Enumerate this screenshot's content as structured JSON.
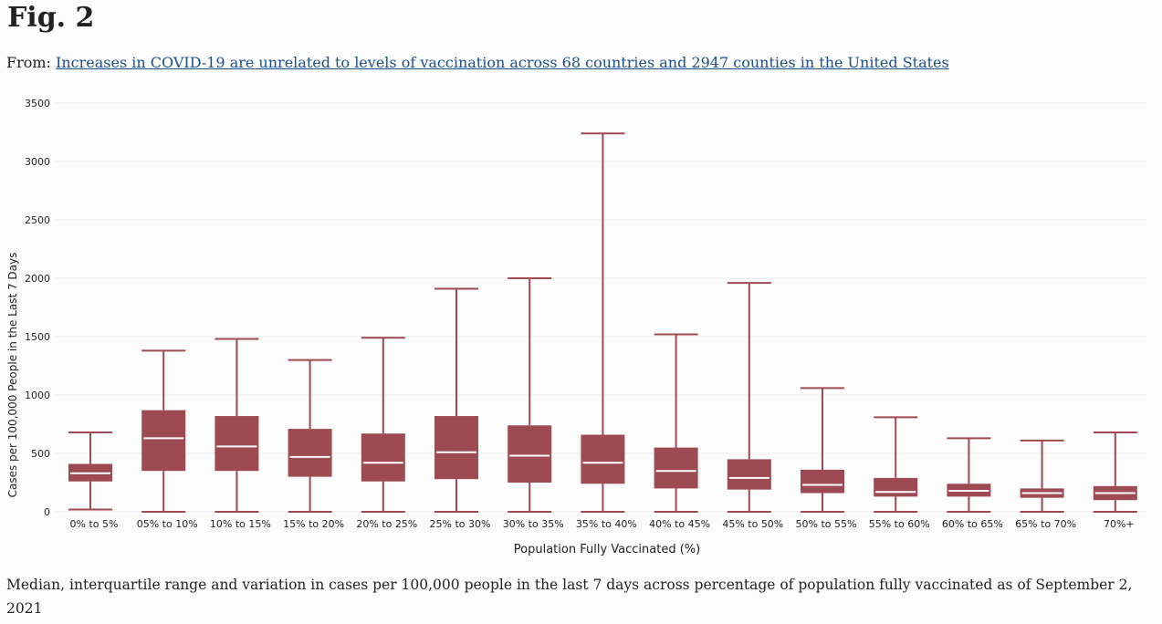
{
  "figure": {
    "title": "Fig. 2",
    "from_prefix": "From: ",
    "source_link": "Increases in COVID-19 are unrelated to levels of vaccination across 68 countries and 2947 counties in the United States",
    "caption": "Median, interquartile range and variation in cases per 100,000 people in the last 7 days across percentage of population fully vaccinated as of September 2, 2021"
  },
  "colors": {
    "box_fill": "#9e4a52",
    "whisker": "#9e4a52",
    "median": "#ffffff",
    "link": "#1a4f8a",
    "grid": "#ececec"
  },
  "chart_data": {
    "type": "boxplot",
    "xlabel": "Population Fully Vaccinated (%)",
    "ylabel": "Cases per 100,000 People in the Last 7 Days",
    "ylim": [
      0,
      3500
    ],
    "yticks": [
      0,
      500,
      1000,
      1500,
      2000,
      2500,
      3000,
      3500
    ],
    "grid": true,
    "categories": [
      "0% to 5%",
      "05% to 10%",
      "10% to 15%",
      "15% to 20%",
      "20% to 25%",
      "25% to 30%",
      "30% to 35%",
      "35% to 40%",
      "40% to 45%",
      "45% to 50%",
      "50% to 55%",
      "55% to 60%",
      "60% to 65%",
      "65% to 70%",
      "70%+"
    ],
    "boxes": [
      {
        "min": 20,
        "q1": 260,
        "median": 330,
        "q3": 410,
        "max": 680
      },
      {
        "min": 0,
        "q1": 350,
        "median": 630,
        "q3": 870,
        "max": 1380
      },
      {
        "min": 0,
        "q1": 350,
        "median": 560,
        "q3": 820,
        "max": 1480
      },
      {
        "min": 0,
        "q1": 300,
        "median": 470,
        "q3": 710,
        "max": 1300
      },
      {
        "min": 0,
        "q1": 260,
        "median": 420,
        "q3": 670,
        "max": 1490
      },
      {
        "min": 0,
        "q1": 280,
        "median": 510,
        "q3": 820,
        "max": 1910
      },
      {
        "min": 0,
        "q1": 250,
        "median": 480,
        "q3": 740,
        "max": 2000
      },
      {
        "min": 0,
        "q1": 240,
        "median": 420,
        "q3": 660,
        "max": 3240
      },
      {
        "min": 0,
        "q1": 200,
        "median": 350,
        "q3": 550,
        "max": 1520
      },
      {
        "min": 0,
        "q1": 190,
        "median": 290,
        "q3": 450,
        "max": 1960
      },
      {
        "min": 0,
        "q1": 160,
        "median": 230,
        "q3": 360,
        "max": 1060
      },
      {
        "min": 0,
        "q1": 130,
        "median": 170,
        "q3": 290,
        "max": 810
      },
      {
        "min": 0,
        "q1": 130,
        "median": 180,
        "q3": 240,
        "max": 630
      },
      {
        "min": 0,
        "q1": 120,
        "median": 160,
        "q3": 200,
        "max": 610
      },
      {
        "min": 0,
        "q1": 100,
        "median": 160,
        "q3": 220,
        "max": 680
      }
    ]
  }
}
